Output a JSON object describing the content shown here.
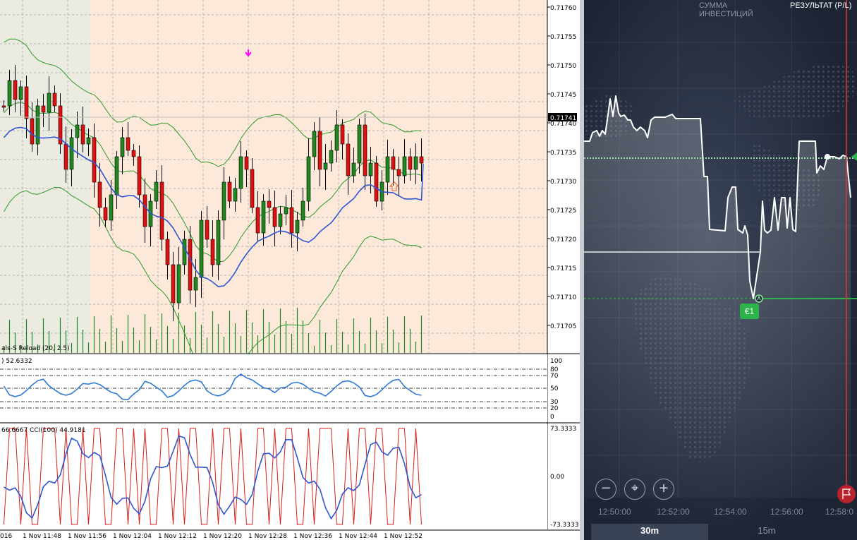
{
  "metatrader": {
    "price_labels": [
      "0.71760",
      "0.71755",
      "0.71750",
      "0.71745",
      "0.71740",
      "0.71735",
      "0.71730",
      "0.71725",
      "0.71720",
      "0.71715",
      "0.71710",
      "0.71705"
    ],
    "current_price": "0.71741",
    "indicator_label": "als-S Reload (20, 2.5)",
    "rsi_panel": {
      "label": ") 52.6332",
      "levels": [
        "100",
        "80",
        "70",
        "50",
        "30",
        "20",
        "0"
      ]
    },
    "cci_panel": {
      "label": "66.6667  CCI(100) 44.9181",
      "levels": [
        "73.3333",
        "0.00",
        "-73.3333"
      ]
    },
    "time_labels": [
      "016",
      "1 Nov 11:48",
      "1 Nov 11:56",
      "1 Nov 12:04",
      "1 Nov 12:12",
      "1 Nov 12:20",
      "1 Nov 12:28",
      "1 Nov 12:36",
      "1 Nov 12:44",
      "1 Nov 12:52"
    ],
    "colors": {
      "bull": "#1e8a1e",
      "bear": "#e01010",
      "ma": "#2f55d4",
      "bands": "#2a9a2a",
      "rsi": "#2f7ad4",
      "cci_red": "#d81c1c",
      "cci_blue": "#2f55d4",
      "chart_bg": "#fde9d9",
      "chart_bg_old": "#ecebe1"
    }
  },
  "iqoption": {
    "header_investment": "СУММА ИНВЕСТИЦИЙ",
    "header_result": "РЕЗУЛЬТАТ (P/L)",
    "trade_badge": "€1",
    "time_labels": [
      "12:50:00",
      "12:52:00",
      "12:54:00",
      "12:56:00",
      "12:58:0"
    ],
    "zoom_out": "−",
    "center": "⌖",
    "zoom_in": "+",
    "tabs": [
      "30m",
      "15m"
    ],
    "active_tab": "30m",
    "colors": {
      "bg": "#1d2434",
      "line": "#ffffff",
      "entry": "#2cb34a",
      "current": "#8fe3a0",
      "expiry": "#d93b3b"
    }
  }
}
